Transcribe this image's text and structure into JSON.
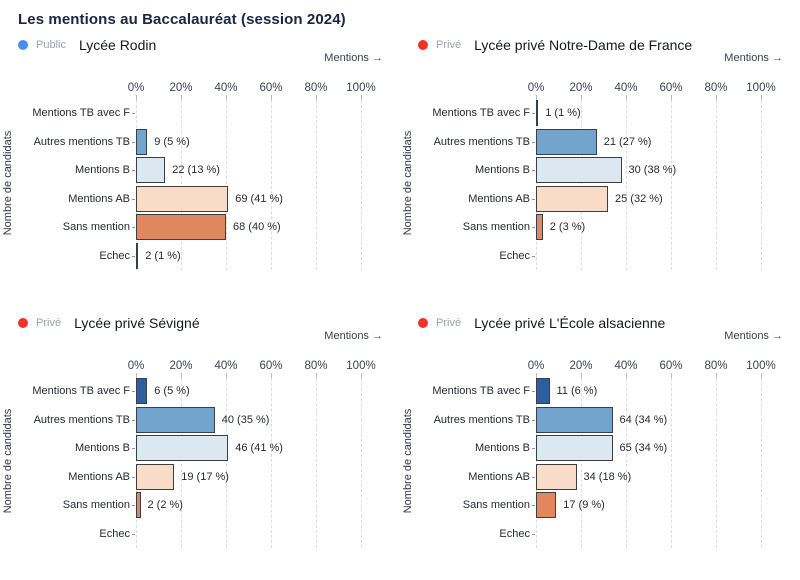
{
  "title": "Les mentions au Baccalauréat (session 2024)",
  "axis": {
    "x_label": "Mentions →",
    "y_label": "Nombre de candidats",
    "ticks": [
      "0%",
      "20%",
      "40%",
      "60%",
      "80%",
      "100%"
    ],
    "xlim": [
      0,
      100
    ],
    "grid": "dashed-vertical"
  },
  "colors": {
    "category_fills": [
      "#2c5f9e",
      "#72a4cd",
      "#dbe8f2",
      "#f9dcc8",
      "#e0875f",
      "#a81f24"
    ],
    "bar_border": "#3a3f44",
    "public_dot": "#4a8df0",
    "prive_dot": "#ee3425",
    "title_text": "#1c2642",
    "sector_text": "#98a1b0",
    "grid_line": "#dcdcdc"
  },
  "chart_data": [
    {
      "type": "bar",
      "orientation": "horizontal",
      "title": "Lycée Rodin",
      "sector": "Public",
      "categories": [
        "Mentions TB avec F",
        "Autres mentions TB",
        "Mentions B",
        "Mentions AB",
        "Sans mention",
        "Echec"
      ],
      "counts": [
        null,
        9,
        22,
        69,
        68,
        2
      ],
      "percents": [
        null,
        5,
        13,
        41,
        40,
        1
      ],
      "bar_labels": [
        null,
        "9 (5 %)",
        "22 (13 %)",
        "69 (41 %)",
        "68 (40 %)",
        "2 (1 %)"
      ],
      "xlabel": "Mentions →",
      "ylabel": "Nombre de candidats",
      "x_ticks": [
        "0%",
        "20%",
        "40%",
        "60%",
        "80%",
        "100%"
      ],
      "xlim": [
        0,
        100
      ]
    },
    {
      "type": "bar",
      "orientation": "horizontal",
      "title": "Lycée privé Notre-Dame de France",
      "sector": "Privé",
      "categories": [
        "Mentions TB avec F",
        "Autres mentions TB",
        "Mentions B",
        "Mentions AB",
        "Sans mention",
        "Echec"
      ],
      "counts": [
        1,
        21,
        30,
        25,
        2,
        null
      ],
      "percents": [
        1,
        27,
        38,
        32,
        3,
        null
      ],
      "bar_labels": [
        "1 (1 %)",
        "21 (27 %)",
        "30 (38 %)",
        "25 (32 %)",
        "2 (3 %)",
        null
      ],
      "xlabel": "Mentions →",
      "ylabel": "Nombre de candidats",
      "x_ticks": [
        "0%",
        "20%",
        "40%",
        "60%",
        "80%",
        "100%"
      ],
      "xlim": [
        0,
        100
      ]
    },
    {
      "type": "bar",
      "orientation": "horizontal",
      "title": "Lycée privé Sévigné",
      "sector": "Privé",
      "categories": [
        "Mentions TB avec F",
        "Autres mentions TB",
        "Mentions B",
        "Mentions AB",
        "Sans mention",
        "Echec"
      ],
      "counts": [
        6,
        40,
        46,
        19,
        2,
        null
      ],
      "percents": [
        5,
        35,
        41,
        17,
        2,
        null
      ],
      "bar_labels": [
        "6 (5 %)",
        "40 (35 %)",
        "46 (41 %)",
        "19 (17 %)",
        "2 (2 %)",
        null
      ],
      "xlabel": "Mentions →",
      "ylabel": "Nombre de candidats",
      "x_ticks": [
        "0%",
        "20%",
        "40%",
        "60%",
        "80%",
        "100%"
      ],
      "xlim": [
        0,
        100
      ]
    },
    {
      "type": "bar",
      "orientation": "horizontal",
      "title": "Lycée privé L'École alsacienne",
      "sector": "Privé",
      "categories": [
        "Mentions TB avec F",
        "Autres mentions TB",
        "Mentions B",
        "Mentions AB",
        "Sans mention",
        "Echec"
      ],
      "counts": [
        11,
        64,
        65,
        34,
        17,
        null
      ],
      "percents": [
        6,
        34,
        34,
        18,
        9,
        null
      ],
      "bar_labels": [
        "11 (6 %)",
        "64 (34 %)",
        "65 (34 %)",
        "34 (18 %)",
        "17 (9 %)",
        null
      ],
      "xlabel": "Mentions →",
      "ylabel": "Nombre de candidats",
      "x_ticks": [
        "0%",
        "20%",
        "40%",
        "60%",
        "80%",
        "100%"
      ],
      "xlim": [
        0,
        100
      ]
    }
  ]
}
